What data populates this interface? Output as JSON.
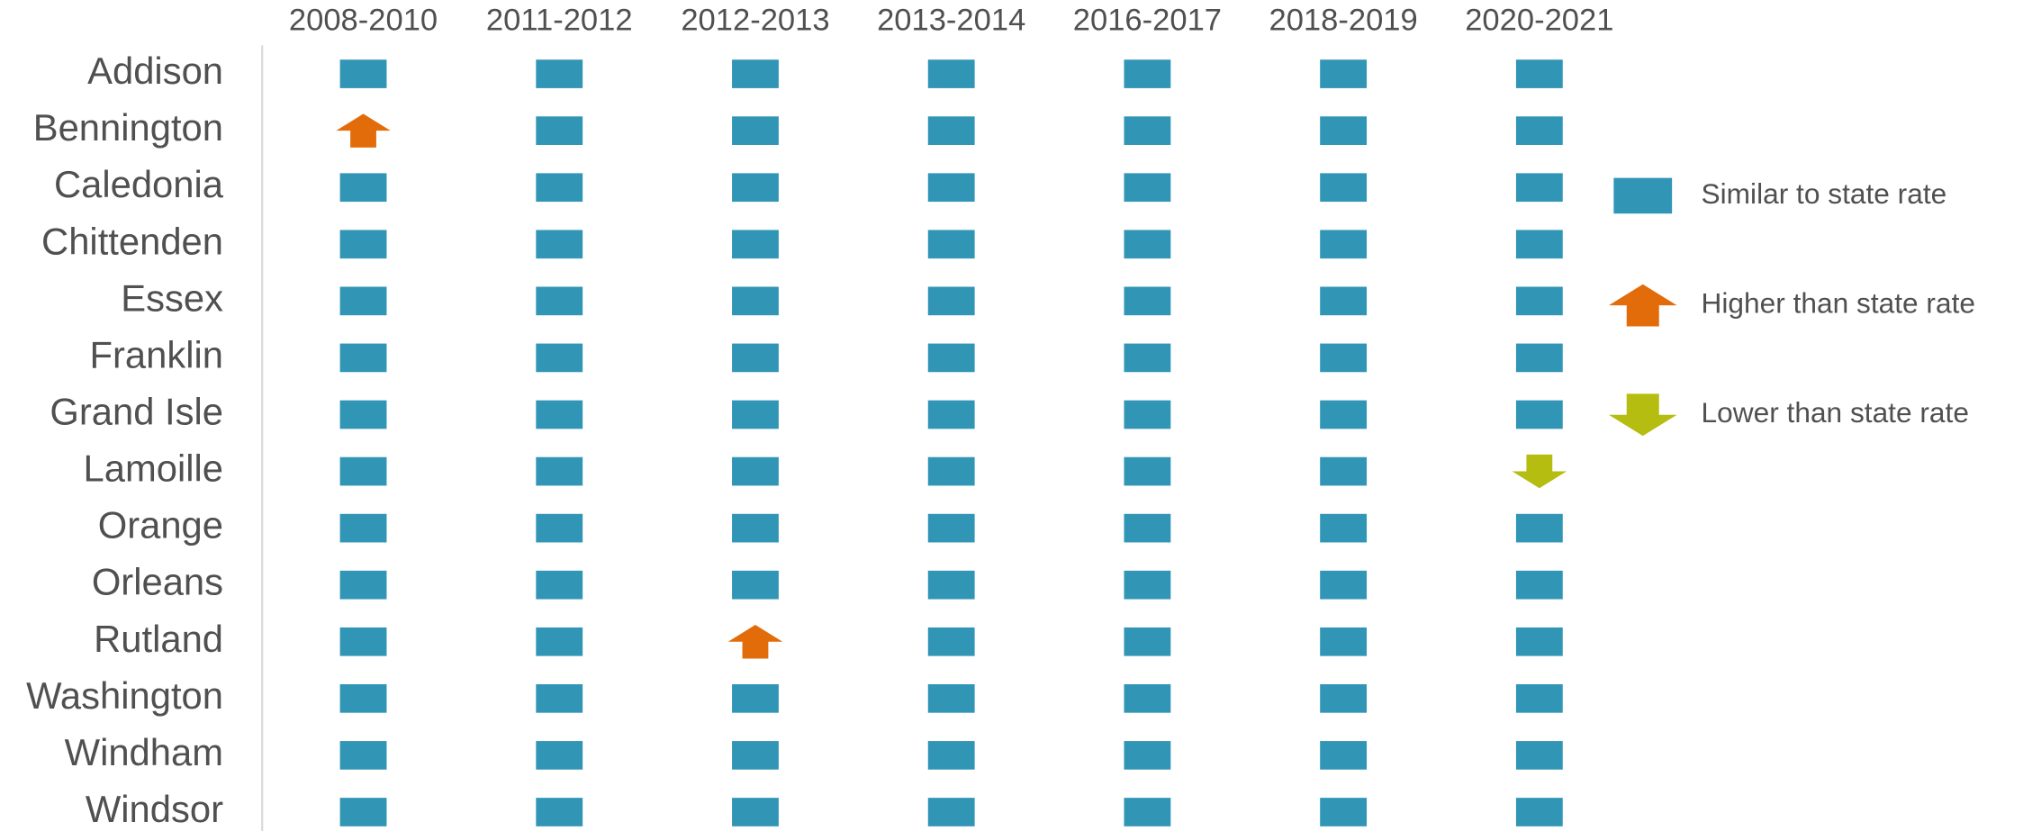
{
  "chart_data": {
    "type": "icon-grid",
    "columns": [
      "2008-2010",
      "2011-2012",
      "2012-2013",
      "2013-2014",
      "2016-2017",
      "2018-2019",
      "2020-2021"
    ],
    "rows": [
      "Addison",
      "Bennington",
      "Caledonia",
      "Chittenden",
      "Essex",
      "Franklin",
      "Grand Isle",
      "Lamoille",
      "Orange",
      "Orleans",
      "Rutland",
      "Washington",
      "Windham",
      "Windsor"
    ],
    "legend": [
      {
        "label": "Similar to state rate",
        "color": "#3195b6",
        "shape": "square"
      },
      {
        "label": "Higher than state rate",
        "color": "#e36c0a",
        "shape": "arrow-up"
      },
      {
        "label": "Lower than state rate",
        "color": "#b5bd10",
        "shape": "arrow-down"
      }
    ],
    "cells": [
      [
        0,
        0,
        0,
        0,
        0,
        0,
        0
      ],
      [
        1,
        0,
        0,
        0,
        0,
        0,
        0
      ],
      [
        0,
        0,
        0,
        0,
        0,
        0,
        0
      ],
      [
        0,
        0,
        0,
        0,
        0,
        0,
        0
      ],
      [
        0,
        0,
        0,
        0,
        0,
        0,
        0
      ],
      [
        0,
        0,
        0,
        0,
        0,
        0,
        0
      ],
      [
        0,
        0,
        0,
        0,
        0,
        0,
        0
      ],
      [
        0,
        0,
        0,
        0,
        0,
        0,
        2
      ],
      [
        0,
        0,
        0,
        0,
        0,
        0,
        0
      ],
      [
        0,
        0,
        0,
        0,
        0,
        0,
        0
      ],
      [
        0,
        0,
        1,
        0,
        0,
        0,
        0
      ],
      [
        0,
        0,
        0,
        0,
        0,
        0,
        0
      ],
      [
        0,
        0,
        0,
        0,
        0,
        0,
        0
      ],
      [
        0,
        0,
        0,
        0,
        0,
        0,
        0
      ]
    ]
  }
}
